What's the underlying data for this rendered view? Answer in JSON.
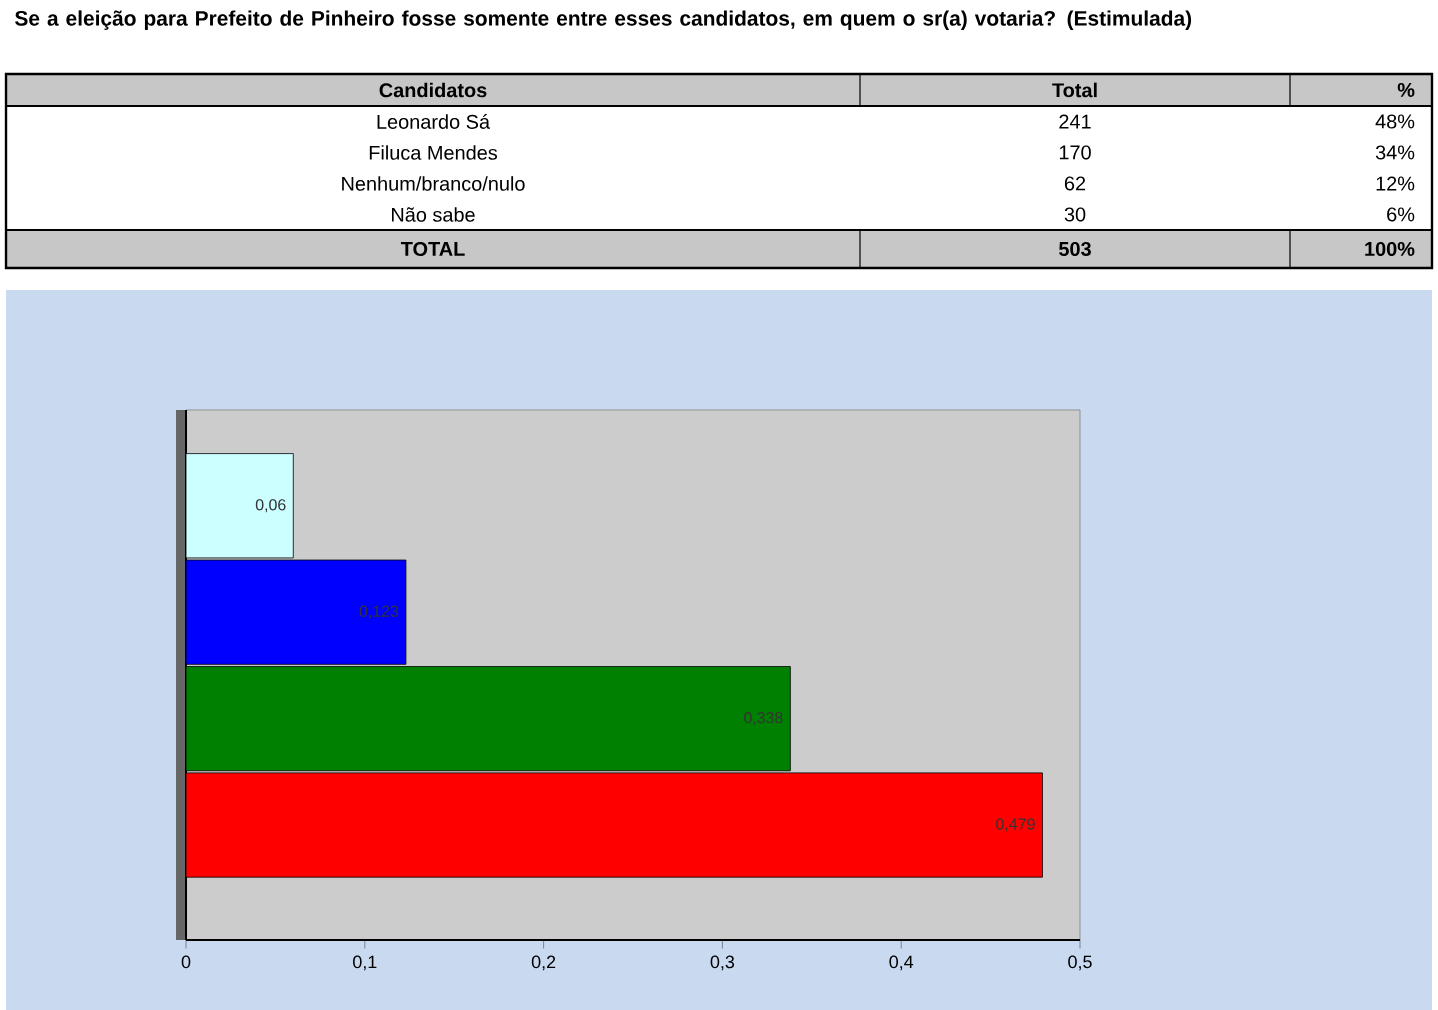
{
  "chart_data": [
    {
      "type": "other",
      "title": "Se a eleição para Prefeito de Pinheiro fosse somente entre esses candidatos, em quem o sr(a) votaria? (Estimulada)",
      "annotations": [
        "Candidatos",
        "Total",
        "%",
        "Leonardo Sá",
        "241",
        "48%",
        "Filuca Mendes",
        "170",
        "34%",
        "Nenhum/branco/nulo",
        "62",
        "12%",
        "Não sabe",
        "30",
        "6%",
        "TOTAL",
        "503",
        "100%"
      ]
    },
    {
      "type": "bar",
      "orientation": "horizontal",
      "categories": [
        null,
        null,
        null,
        null
      ],
      "values": [
        0.06,
        0.123,
        0.338,
        0.479
      ],
      "colors": [
        "#ccffff",
        "#0000ff",
        "#008000",
        "#ff0000"
      ],
      "value_labels": [
        "0,06",
        "0,123",
        "0,338",
        "0,479"
      ],
      "xlim": [
        0,
        0.5
      ],
      "xticks": [
        0,
        {
          "value": 0.1,
          "label": "0,1"
        },
        {
          "value": 0.2,
          "label": "0,2"
        },
        {
          "value": 0.3,
          "label": "0,3"
        },
        {
          "value": 0.4,
          "label": "0,4"
        },
        {
          "value": 0.5,
          "label": "0,5"
        }
      ]
    }
  ]
}
